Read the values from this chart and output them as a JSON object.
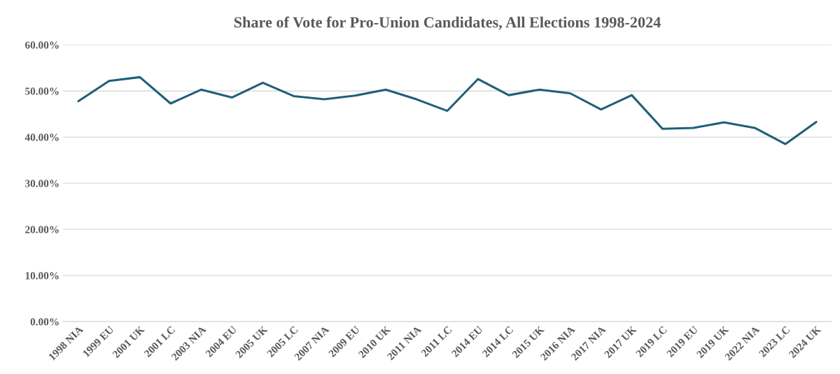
{
  "chart_data": {
    "type": "line",
    "title": "Share of Vote for Pro-Union Candidates, All Elections 1998-2024",
    "categories": [
      "1998 NIA",
      "1999 EU",
      "2001 UK",
      "2001 LC",
      "2003 NIA",
      "2004 EU",
      "2005 UK",
      "2005 LC",
      "2007 NIA",
      "2009 EU",
      "2010 UK",
      "2011 NIA",
      "2011 LC",
      "2014 EU",
      "2014 LC",
      "2015 UK",
      "2016 NIA",
      "2017 NIA",
      "2017 UK",
      "2019 LC",
      "2019 EU",
      "2019 UK",
      "2022 NIA",
      "2023 LC",
      "2024 UK"
    ],
    "series": [
      {
        "color": "#1f5f7a",
        "values": [
          47.8,
          52.2,
          53.0,
          47.3,
          50.3,
          48.6,
          51.8,
          48.9,
          48.2,
          49.0,
          50.3,
          48.2,
          45.7,
          52.6,
          49.1,
          50.3,
          49.5,
          46.0,
          49.1,
          41.8,
          42.0,
          43.2,
          42.0,
          38.5,
          43.3
        ]
      }
    ],
    "ylim": [
      0,
      60
    ],
    "yticks": [
      {
        "value": 0,
        "label": "0.00%"
      },
      {
        "value": 10,
        "label": "10.00%"
      },
      {
        "value": 20,
        "label": "20.00%"
      },
      {
        "value": 30,
        "label": "30.00%"
      },
      {
        "value": 40,
        "label": "40.00%"
      },
      {
        "value": 50,
        "label": "50.00%"
      },
      {
        "value": 60,
        "label": "60.00%"
      }
    ],
    "grid": "y",
    "legend": false,
    "marker": "none",
    "line_style": "solid"
  }
}
